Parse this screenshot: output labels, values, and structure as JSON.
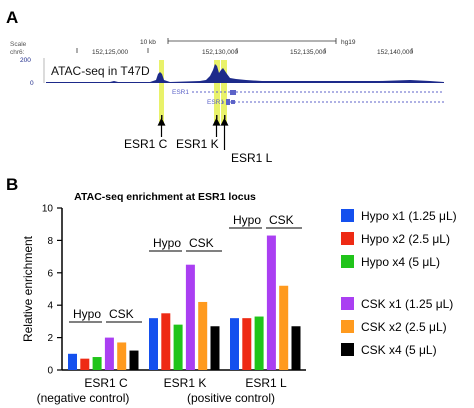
{
  "panel_a": {
    "letter": "A",
    "scale_label": "Scale",
    "chrom_label": "chr6:",
    "scale_bar_label": "10 kb",
    "genome_label": "hg19",
    "positions": [
      "152,125,000",
      "152,130,000",
      "152,135,000",
      "152,140,000"
    ],
    "y_top": "200",
    "y_zero": "0",
    "track_title": "ATAC-seq in T47D",
    "gene_label": "ESR1",
    "locus_labels": [
      "ESR1 C",
      "ESR1 K",
      "ESR1 L"
    ],
    "colors": {
      "track": "#1d2a8a",
      "highlight": "#e9f26a",
      "gene": "#5c63c8"
    }
  },
  "panel_b": {
    "letter": "B",
    "bracket_labels": [
      "Hypo",
      "CSK",
      "Hypo",
      "CSK",
      "Hypo",
      "CSK"
    ],
    "category_sublabels": [
      "(negative control)",
      "(positive control)"
    ]
  },
  "chart_data": {
    "type": "bar",
    "title": "ATAC-seq enrichment at ESR1 locus",
    "xlabel": "",
    "ylabel": "Relative enrichment",
    "ylim": [
      0,
      10
    ],
    "yticks": [
      "0",
      "2",
      "4",
      "6",
      "8",
      "10"
    ],
    "categories": [
      "ESR1 C",
      "ESR1 K",
      "ESR1 L"
    ],
    "series": [
      {
        "name": "Hypo x1 (1.25 μL)",
        "color": "#1450ee",
        "values": [
          1.0,
          3.2,
          3.2
        ]
      },
      {
        "name": "Hypo x2 (2.5 μL)",
        "color": "#ee2a14",
        "values": [
          0.7,
          3.5,
          3.2
        ]
      },
      {
        "name": "Hypo x4 (5 μL)",
        "color": "#20c41a",
        "values": [
          0.8,
          2.8,
          3.3
        ]
      },
      {
        "name": "CSK x1 (1.25 μL)",
        "color": "#aa3ff2",
        "values": [
          2.0,
          6.5,
          8.3
        ]
      },
      {
        "name": "CSK x2 (2.5 μL)",
        "color": "#ff9a1e",
        "values": [
          1.7,
          4.2,
          5.2
        ]
      },
      {
        "name": "CSK x4 (5 μL)",
        "color": "#000000",
        "values": [
          1.2,
          2.7,
          2.7
        ]
      }
    ],
    "grid": false,
    "legend_position": "right"
  }
}
